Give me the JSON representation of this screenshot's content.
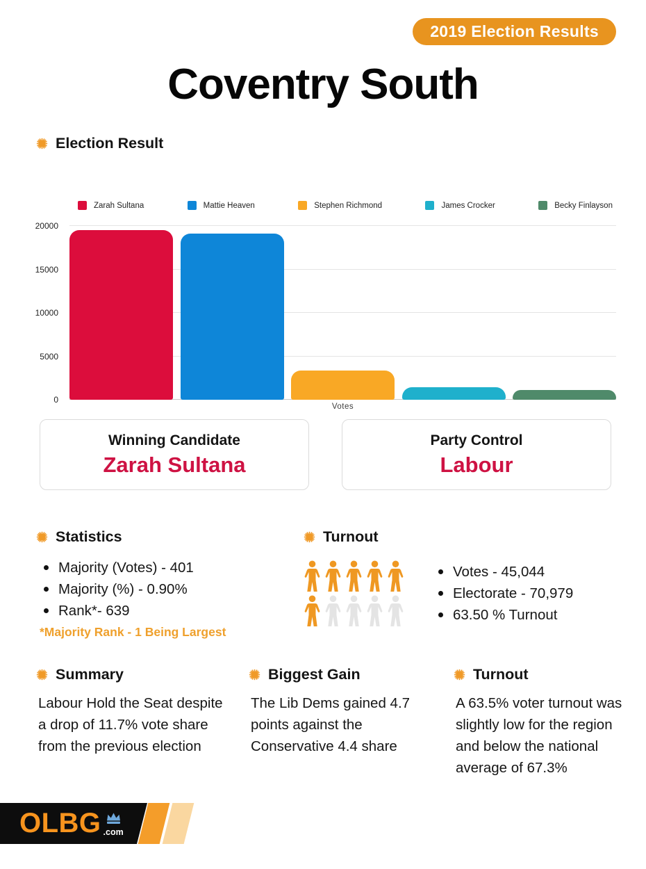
{
  "badge": {
    "label": "2019 Election Results",
    "bg_color": "#E8941F"
  },
  "title": "Coventry South",
  "section_election": {
    "heading": "Election Result"
  },
  "chart_data": {
    "type": "bar",
    "title": "",
    "categories": [
      "Zarah Sultana",
      "Mattie Heaven",
      "Stephen Richmond",
      "James Crocker",
      "Becky Finlayson"
    ],
    "values": [
      19544,
      19143,
      3398,
      1432,
      1092
    ],
    "colors": [
      "#DC0D3C",
      "#0E86D8",
      "#F9A825",
      "#1FB0CC",
      "#4F8A6A"
    ],
    "xlabel": "Votes",
    "ylabel": "",
    "ylim": [
      0,
      20000
    ],
    "yticks": [
      0,
      5000,
      10000,
      15000,
      20000
    ],
    "grid": true,
    "legend_position": "top"
  },
  "cards": [
    {
      "label": "Winning Candidate",
      "value": "Zarah Sultana"
    },
    {
      "label": "Party Control",
      "value": "Labour"
    }
  ],
  "statistics": {
    "heading": "Statistics",
    "items": [
      "Majority (Votes) - 401",
      "Majority (%) - 0.90%",
      "Rank*- 639"
    ],
    "footnote": "*Majority Rank - 1 Being Largest"
  },
  "turnout": {
    "heading": "Turnout",
    "items": [
      "Votes - 45,044",
      "Electorate - 70,979",
      "63.50 % Turnout"
    ],
    "pictogram": {
      "total": 10,
      "filled": 6,
      "per_row": 5,
      "filled_color": "#EF9822",
      "empty_color": "#E4E4E4"
    }
  },
  "summary": {
    "heading": "Summary",
    "text": "Labour Hold the Seat despite\na drop of 11.7% vote share\nfrom the previous election"
  },
  "biggest_gain": {
    "heading": "Biggest Gain",
    "text": "The Lib Dems gained 4.7\npoints against the\nConservative 4.4 share"
  },
  "turnout_note": {
    "heading": "Turnout",
    "text": "A 63.5% voter turnout was\nslightly low for the region\nand below the national\naverage of 67.3%"
  },
  "footer": {
    "brand": "OLBG",
    "brand_suffix": ".com",
    "crown_color": "#6EA8DC"
  },
  "colors": {
    "accent_orange": "#EFA02C",
    "crimson_text": "#CE1243"
  }
}
